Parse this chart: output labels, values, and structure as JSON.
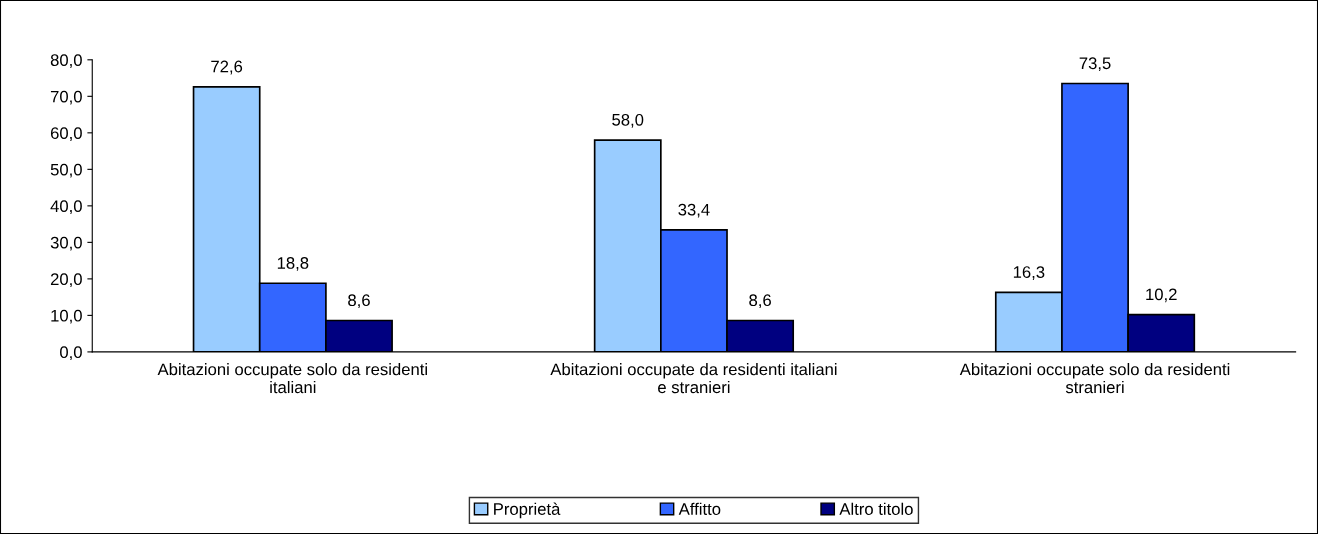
{
  "chart_data": {
    "type": "bar",
    "categories": [
      "Abitazioni occupate solo da residenti\nitaliani",
      "Abitazioni occupate da residenti italiani\ne stranieri",
      "Abitazioni occupate solo da residenti\nstranieri"
    ],
    "series": [
      {
        "name": "Proprietà",
        "color": "#99ccff",
        "values": [
          72.6,
          58.0,
          16.3
        ],
        "value_labels": [
          "72,6",
          "58,0",
          "16,3"
        ]
      },
      {
        "name": "Affitto",
        "color": "#3366ff",
        "values": [
          18.8,
          33.4,
          73.5
        ],
        "value_labels": [
          "18,8",
          "33,4",
          "73,5"
        ]
      },
      {
        "name": "Altro titolo",
        "color": "#000080",
        "values": [
          8.6,
          8.6,
          10.2
        ],
        "value_labels": [
          "8,6",
          "8,6",
          "10,2"
        ]
      }
    ],
    "ylim": [
      0,
      80
    ],
    "yticks": [
      {
        "value": 0,
        "label": "0,0"
      },
      {
        "value": 10,
        "label": "10,0"
      },
      {
        "value": 20,
        "label": "20,0"
      },
      {
        "value": 30,
        "label": "30,0"
      },
      {
        "value": 40,
        "label": "40,0"
      },
      {
        "value": 50,
        "label": "50,0"
      },
      {
        "value": 60,
        "label": "60,0"
      },
      {
        "value": 70,
        "label": "70,0"
      },
      {
        "value": 80,
        "label": "80,0"
      }
    ],
    "grid": false,
    "legend": "bottom"
  }
}
